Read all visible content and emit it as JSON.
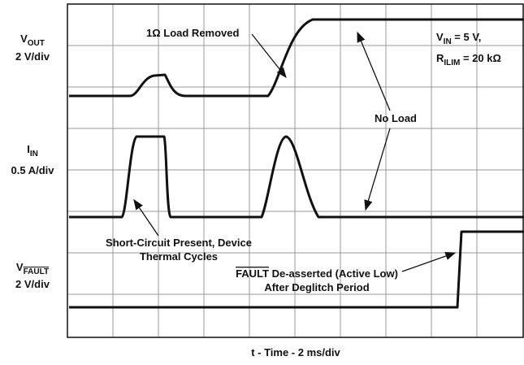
{
  "channels": {
    "vout": {
      "main": "V",
      "sub": "OUT",
      "scale": "2 V/div"
    },
    "iin": {
      "main": "I",
      "sub": "IN",
      "scale": "0.5 A/div"
    },
    "vfault": {
      "main": "V",
      "sub": "FAULT",
      "scale": "2 V/div"
    }
  },
  "x_axis_label": "t - Time - 2 ms/div",
  "annotations": {
    "load_removed": "1Ω Load Removed",
    "conditions": {
      "vin_main": "V",
      "vin_sub": "IN",
      "vin_rest": " = 5 V,",
      "r_main": "R",
      "r_sub": "ILIM",
      "r_rest": " = 20 kΩ"
    },
    "no_load": "No Load",
    "short_circuit": [
      "Short-Circuit Present, Device",
      "Thermal Cycles"
    ],
    "fault": {
      "name": "FAULT",
      "rest": " De-asserted (Active Low)",
      "line2": "After Deglitch Period"
    }
  }
}
